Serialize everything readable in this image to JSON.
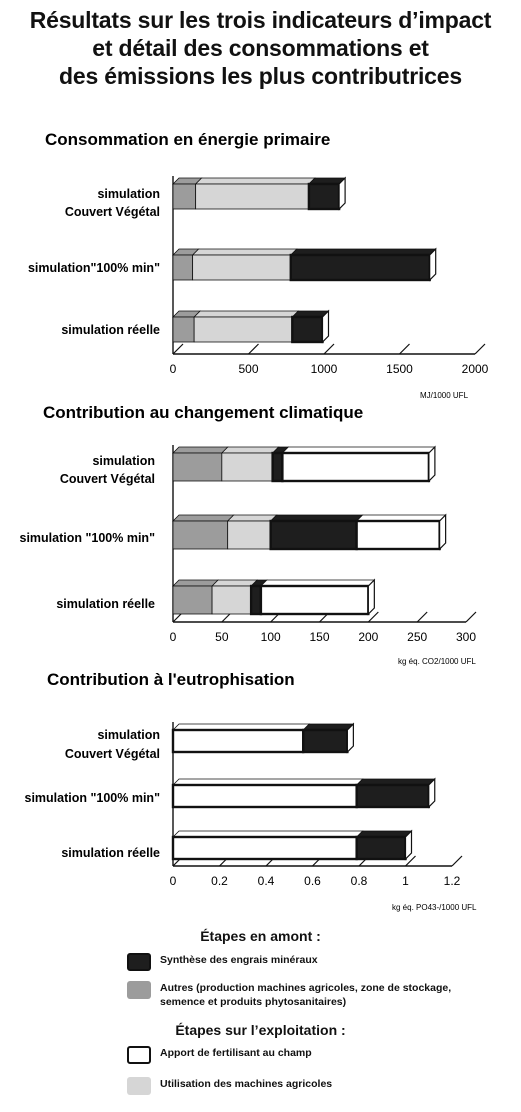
{
  "title": {
    "line1": "Résultats sur les trois indicateurs d’impact",
    "line2": "et détail des consommations et",
    "line3": "des émissions les plus contributrices"
  },
  "colors": {
    "engrais": "#1e1e1e",
    "autres": "#9c9c9c",
    "apport": "#ffffff",
    "machines": "#d6d6d6",
    "outline": "#111111"
  },
  "chart_data": [
    {
      "type": "bar",
      "title": "Consommation en énergie primaire",
      "unit_label": "MJ/1000 UFL",
      "categories": [
        "simulation\nCouvert Végétal",
        "simulation\"100% min\"",
        "simulation réelle"
      ],
      "xlim": [
        0,
        2000
      ],
      "ticks": [
        "0",
        "500",
        "1000",
        "1500",
        "2000"
      ],
      "tick_values": [
        0,
        500,
        1000,
        1500,
        2000
      ],
      "series": [
        {
          "name": "Autres (production machines agricoles, zone de stockage, semence et produits phytosanitaires)",
          "values": [
            150,
            130,
            140
          ]
        },
        {
          "name": "Utilisation des machines agricoles",
          "values": [
            750,
            650,
            650
          ]
        },
        {
          "name": "Apport de fertilisant au champ",
          "values": [
            0,
            0,
            0
          ]
        },
        {
          "name": "Synthèse des engrais minéraux",
          "values": [
            200,
            920,
            200
          ]
        }
      ]
    },
    {
      "type": "bar",
      "title": "Contribution au changement climatique",
      "unit_label": "kg éq. CO2/1000 UFL",
      "categories": [
        "simulation\nCouvert Végétal",
        "simulation \"100% min\"",
        "simulation réelle"
      ],
      "xlim": [
        0,
        300
      ],
      "ticks": [
        "0",
        "50",
        "100",
        "150",
        "200",
        "250",
        "300"
      ],
      "tick_values": [
        0,
        50,
        100,
        150,
        200,
        250,
        300
      ],
      "series": [
        {
          "name": "Autres (production machines agricoles, zone de stockage, semence et produits phytosanitaires)",
          "values": [
            50,
            56,
            40
          ]
        },
        {
          "name": "Utilisation des machines agricoles",
          "values": [
            52,
            44,
            40
          ]
        },
        {
          "name": "Synthèse des engrais minéraux",
          "values": [
            10,
            88,
            10
          ]
        },
        {
          "name": "Apport de fertilisant au champ",
          "values": [
            150,
            85,
            110
          ]
        }
      ]
    },
    {
      "type": "bar",
      "title": "Contribution à l'eutrophisation",
      "unit_label": "kg éq. PO43-/1000 UFL",
      "categories": [
        "simulation\nCouvert Végétal",
        "simulation \"100% min\"",
        "simulation réelle"
      ],
      "xlim": [
        0,
        1.2
      ],
      "ticks": [
        "0",
        "0.2",
        "0.4",
        "0.6",
        "0.8",
        "1",
        "1.2"
      ],
      "tick_values": [
        0,
        0.2,
        0.4,
        0.6,
        0.8,
        1,
        1.2
      ],
      "series": [
        {
          "name": "Apport de fertilisant au champ",
          "values": [
            0.56,
            0.79,
            0.79
          ]
        },
        {
          "name": "Synthèse des engrais minéraux",
          "values": [
            0.19,
            0.31,
            0.21
          ]
        }
      ]
    }
  ],
  "legend": {
    "amont_title": "Étapes en amont :",
    "exploitation_title": "Étapes sur l’exploitation :",
    "items": [
      {
        "key": "engrais",
        "label": "Synthèse des engrais minéraux"
      },
      {
        "key": "autres",
        "label": "Autres (production machines agricoles, zone de stockage, semence et produits phytosanitaires)"
      },
      {
        "key": "apport",
        "label": "Apport de fertilisant au champ"
      },
      {
        "key": "machines",
        "label": "Utilisation des machines agricoles"
      }
    ]
  }
}
